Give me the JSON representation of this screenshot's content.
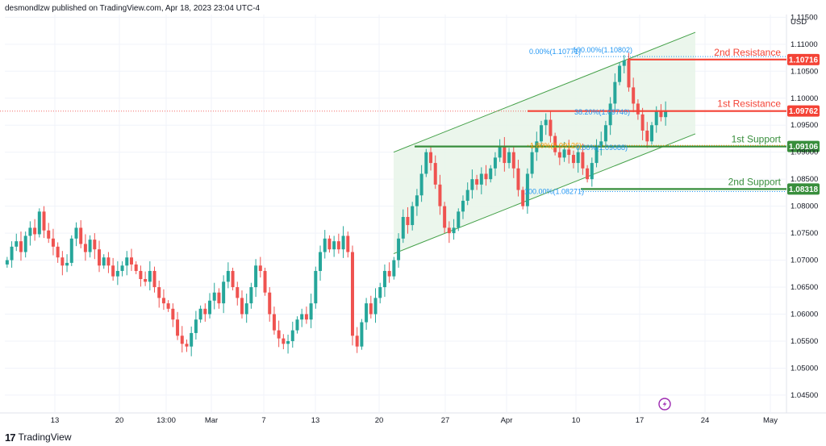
{
  "header": {
    "text": "desmondlzw published on TradingView.com, Apr 18, 2023 23:04 UTC-4"
  },
  "footer": {
    "logo": "17",
    "brand": "TradingView"
  },
  "colors": {
    "up": "#26a69a",
    "down": "#ef5350",
    "channel_fill": "#e8f5e9",
    "channel_line": "#43a047",
    "resistance": "#f44336",
    "support": "#388e3c",
    "fib": "#2196f3",
    "fib_mid": "#ff9800",
    "lightning": "#9c27b0"
  },
  "chart_data": {
    "type": "candlestick",
    "title": "",
    "currency": "USD",
    "ylim": [
      1.0417,
      1.1155
    ],
    "y_ticks": [
      "1.04500",
      "1.05000",
      "1.05500",
      "1.06000",
      "1.06500",
      "1.07000",
      "1.07500",
      "1.08000",
      "1.08500",
      "1.09000",
      "1.09500",
      "1.10000",
      "1.10500",
      "1.11000",
      "1.11500"
    ],
    "x_ticks": [
      "13",
      "20",
      "13:00",
      "Mar",
      "7",
      "13",
      "20",
      "27",
      "Apr",
      "10",
      "17",
      "24",
      "May"
    ],
    "levels": [
      {
        "label": "2nd Resistance",
        "price": 1.10716,
        "tag": "1.10716",
        "kind": "resistance"
      },
      {
        "label": "1st Resistance",
        "price": 1.09762,
        "tag": "1.09762",
        "kind": "resistance"
      },
      {
        "label": "1st Support",
        "price": 1.09106,
        "tag": "1.09106",
        "kind": "support"
      },
      {
        "label": "2nd Support",
        "price": 1.08318,
        "tag": "1.08318",
        "kind": "support"
      }
    ],
    "fib_labels": [
      {
        "text": "0.00%(1.10771)",
        "price": 1.10771
      },
      {
        "text": "100.00%(1.10802)",
        "price": 1.10802
      },
      {
        "text": "38.20%(1.09746)",
        "price": 1.09746
      },
      {
        "text": "1.80%(1.09126)",
        "price": 1.09126
      },
      {
        "text": "0.00%(1.09088)",
        "price": 1.09088
      },
      {
        "text": "100.00%(1.08271)",
        "price": 1.08271
      }
    ],
    "channel": {
      "lower_start": 1.0712,
      "lower_end": 1.0934,
      "upper_start": 1.09,
      "upper_end": 1.1122
    },
    "closes": [
      1.07,
      1.0725,
      1.0735,
      1.0715,
      1.0745,
      1.076,
      1.0748,
      1.079,
      1.0755,
      1.074,
      1.0725,
      1.0705,
      1.069,
      1.0695,
      1.074,
      1.076,
      1.073,
      1.0715,
      1.0738,
      1.072,
      1.069,
      1.0705,
      1.069,
      1.067,
      1.068,
      1.069,
      1.0705,
      1.0692,
      1.068,
      1.0665,
      1.066,
      1.068,
      1.065,
      1.063,
      1.062,
      1.061,
      1.059,
      1.056,
      1.0545,
      1.054,
      1.0565,
      1.059,
      1.061,
      1.06,
      1.0625,
      1.064,
      1.062,
      1.066,
      1.068,
      1.065,
      1.063,
      1.06,
      1.062,
      1.065,
      1.069,
      1.068,
      1.064,
      1.06,
      1.057,
      1.0555,
      1.0545,
      1.055,
      1.057,
      1.059,
      1.06,
      1.059,
      1.062,
      1.068,
      1.0715,
      1.074,
      1.072,
      1.0735,
      1.072,
      1.0745,
      1.0715,
      1.056,
      1.054,
      1.0585,
      1.062,
      1.06,
      1.063,
      1.065,
      1.068,
      1.067,
      1.07,
      1.074,
      1.078,
      1.0765,
      1.08,
      1.082,
      1.086,
      1.09,
      1.088,
      1.084,
      1.08,
      1.076,
      1.075,
      1.076,
      1.079,
      1.081,
      1.083,
      1.085,
      1.084,
      1.086,
      1.085,
      1.087,
      1.089,
      1.091,
      1.088,
      1.09,
      1.087,
      1.083,
      1.08,
      1.086,
      1.09,
      1.092,
      1.095,
      1.096,
      1.093,
      1.09,
      1.089,
      1.0905,
      1.0895,
      1.088,
      1.09,
      1.087,
      1.085,
      1.088,
      1.091,
      1.092,
      1.095,
      1.099,
      1.103,
      1.106,
      1.107,
      1.102,
      1.099,
      1.097,
      1.094,
      1.092,
      1.095,
      1.0975,
      1.0965,
      1.0976
    ]
  }
}
